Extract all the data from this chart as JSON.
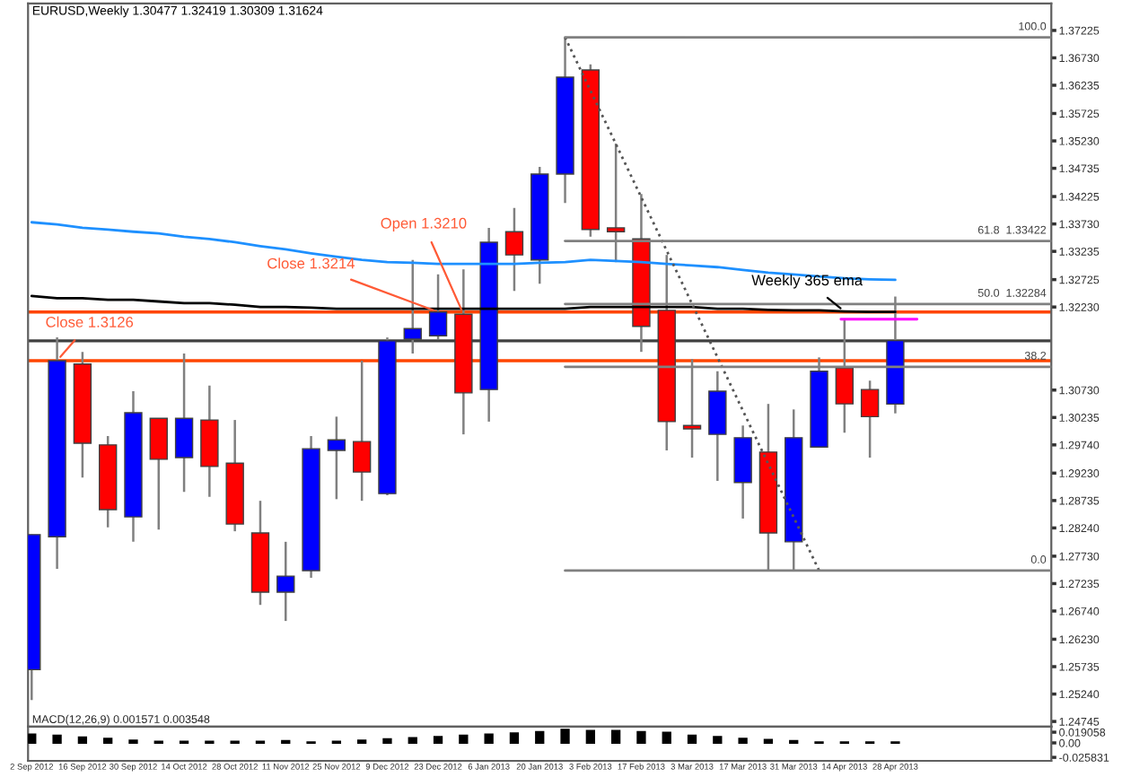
{
  "chart_data": [
    {
      "type": "candlestick",
      "title": "EURUSD,Weekly 1.30477 1.32419 1.30309 1.31624",
      "x": [
        "2012-09-02",
        "2012-09-09",
        "2012-09-16",
        "2012-09-23",
        "2012-09-30",
        "2012-10-07",
        "2012-10-14",
        "2012-10-21",
        "2012-10-28",
        "2012-11-04",
        "2012-11-11",
        "2012-11-18",
        "2012-11-25",
        "2012-12-02",
        "2012-12-09",
        "2012-12-16",
        "2012-12-23",
        "2012-12-30",
        "2013-01-06",
        "2013-01-13",
        "2013-01-20",
        "2013-01-27",
        "2013-02-03",
        "2013-02-10",
        "2013-02-17",
        "2013-02-24",
        "2013-03-03",
        "2013-03-10",
        "2013-03-17",
        "2013-03-24",
        "2013-03-31",
        "2013-04-07",
        "2013-04-14",
        "2013-04-21",
        "2013-04-28"
      ],
      "ohlc": [
        [
          1.2568,
          1.2812,
          1.2513,
          1.2812
        ],
        [
          1.2808,
          1.3168,
          1.275,
          1.3126
        ],
        [
          1.312,
          1.3142,
          1.2915,
          1.2977
        ],
        [
          1.2974,
          1.299,
          1.2825,
          1.2857
        ],
        [
          1.2844,
          1.3071,
          1.2799,
          1.3032
        ],
        [
          1.3022,
          1.3022,
          1.2821,
          1.2948
        ],
        [
          1.2951,
          1.3139,
          1.2889,
          1.3022
        ],
        [
          1.3019,
          1.3081,
          1.288,
          1.2935
        ],
        [
          1.2941,
          1.3019,
          1.2818,
          1.2831
        ],
        [
          1.2815,
          1.2873,
          1.2685,
          1.2708
        ],
        [
          1.2708,
          1.2799,
          1.2656,
          1.2737
        ],
        [
          1.2747,
          1.299,
          1.2734,
          1.2967
        ],
        [
          1.2964,
          1.3025,
          1.2876,
          1.2983
        ],
        [
          1.298,
          1.3126,
          1.2873,
          1.2925
        ],
        [
          1.2886,
          1.3168,
          1.2883,
          1.3162
        ],
        [
          1.3165,
          1.3308,
          1.3139,
          1.3184
        ],
        [
          1.3171,
          1.3282,
          1.3165,
          1.3214
        ],
        [
          1.321,
          1.3291,
          1.2993,
          1.3068
        ],
        [
          1.3074,
          1.3366,
          1.3016,
          1.334
        ],
        [
          1.3359,
          1.3402,
          1.3252,
          1.3317
        ],
        [
          1.3308,
          1.3476,
          1.3265,
          1.3463
        ],
        [
          1.3463,
          1.371,
          1.3411,
          1.3638
        ],
        [
          1.3651,
          1.3661,
          1.335,
          1.3363
        ],
        [
          1.3366,
          1.3518,
          1.3304,
          1.3359
        ],
        [
          1.3346,
          1.3427,
          1.3142,
          1.3188
        ],
        [
          1.3217,
          1.3317,
          1.2964,
          1.3016
        ],
        [
          1.3009,
          1.3129,
          1.2951,
          1.3003
        ],
        [
          1.2993,
          1.3107,
          1.2909,
          1.3071
        ],
        [
          1.2906,
          1.3009,
          1.2841,
          1.2987
        ],
        [
          1.2961,
          1.3048,
          1.2747,
          1.2815
        ],
        [
          1.2799,
          1.3038,
          1.2747,
          1.2987
        ],
        [
          1.297,
          1.3132,
          1.297,
          1.3107
        ],
        [
          1.3113,
          1.3201,
          1.2996,
          1.3048
        ],
        [
          1.3074,
          1.309,
          1.2951,
          1.3025
        ],
        [
          1.30477,
          1.32419,
          1.30309,
          1.31624
        ]
      ],
      "colors": [
        "#0000ff",
        "#0000ff",
        "#ff0000",
        "#ff0000",
        "#0000ff",
        "#ff0000",
        "#0000ff",
        "#ff0000",
        "#ff0000",
        "#ff0000",
        "#0000ff",
        "#0000ff",
        "#0000ff",
        "#ff0000",
        "#0000ff",
        "#0000ff",
        "#0000ff",
        "#ff0000",
        "#0000ff",
        "#ff0000",
        "#0000ff",
        "#0000ff",
        "#ff0000",
        "#ff0000",
        "#ff0000",
        "#ff0000",
        "#ff0000",
        "#0000ff",
        "#0000ff",
        "#ff0000",
        "#0000ff",
        "#0000ff",
        "#ff0000",
        "#ff0000",
        "#0000ff"
      ],
      "series": [
        {
          "type": "line",
          "color": "#1e90ff",
          "values": [
            1.3376,
            1.3372,
            1.3366,
            1.3363,
            1.3359,
            1.3356,
            1.335,
            1.3346,
            1.334,
            1.3333,
            1.3327,
            1.332,
            1.3314,
            1.3308,
            1.3304,
            1.3303,
            1.3301,
            1.3301,
            1.3301,
            1.3301,
            1.3303,
            1.3304,
            1.3308,
            1.3306,
            1.3304,
            1.3301,
            1.3298,
            1.3295,
            1.329,
            1.3285,
            1.3282,
            1.3278,
            1.3275,
            1.3273,
            1.3272
          ]
        },
        {
          "type": "line",
          "color": "#000000",
          "values": [
            1.3243,
            1.3239,
            1.3239,
            1.3236,
            1.3236,
            1.3233,
            1.323,
            1.323,
            1.3227,
            1.3223,
            1.3223,
            1.3222,
            1.322,
            1.322,
            1.322,
            1.322,
            1.322,
            1.322,
            1.322,
            1.322,
            1.322,
            1.322,
            1.3223,
            1.3223,
            1.3223,
            1.3223,
            1.3223,
            1.322,
            1.322,
            1.3218,
            1.3217,
            1.3217,
            1.3215,
            1.3214,
            1.3214
          ]
        },
        {
          "type": "line",
          "color": "#555555",
          "line_style": "dotted",
          "x": [
            "2013-01-27",
            "2013-04-07"
          ],
          "values": [
            1.371,
            1.2747
          ]
        },
        {
          "type": "line",
          "color": "#ff00ff",
          "x": [
            "2013-04-13",
            "2013-05-04"
          ],
          "values": [
            1.3201,
            1.3201
          ]
        },
        {
          "type": "line",
          "name": "100.0",
          "color": "#808080",
          "x": [
            "2013-01-27",
            "2013-06-10"
          ],
          "values": [
            1.371,
            1.371
          ]
        },
        {
          "type": "line",
          "name": "61.8  1.33422",
          "color": "#808080",
          "x": [
            "2013-01-27",
            "2013-06-10"
          ],
          "values": [
            1.33422,
            1.33422
          ]
        },
        {
          "type": "line",
          "name": "50.0  1.32284",
          "color": "#808080",
          "x": [
            "2013-01-27",
            "2013-06-10"
          ],
          "values": [
            1.32284,
            1.32284
          ]
        },
        {
          "type": "line",
          "name": "38.2",
          "color": "#808080",
          "x": [
            "2013-01-27",
            "2013-06-10"
          ],
          "values": [
            1.3115,
            1.3115
          ]
        },
        {
          "type": "line",
          "name": "0.0",
          "color": "#808080",
          "x": [
            "2013-01-27",
            "2013-06-10"
          ],
          "values": [
            1.2747,
            1.2747
          ]
        }
      ],
      "ref_lines": [
        {
          "axis": "y",
          "value": 1.3214,
          "color": "#ff4500"
        },
        {
          "axis": "y",
          "value": 1.3126,
          "color": "#ff4500"
        },
        {
          "axis": "y",
          "value": 1.3162,
          "color": "#404040"
        }
      ],
      "annotations": [
        {
          "text": "Close 1.3126",
          "x": "2012-09-09",
          "y": 1.3126
        },
        {
          "text": "Close 1.3214",
          "x": "2012-12-23",
          "y": 1.3214
        },
        {
          "text": "Open 1.3210",
          "x": "2012-12-30",
          "y": 1.321
        },
        {
          "text": "Weekly 365 ema",
          "x": "2013-04-14",
          "y": 1.3215
        }
      ],
      "xlim": [
        "2012-09-01",
        "2013-06-10"
      ],
      "ylim": [
        1.2465,
        1.3771
      ],
      "yticks": [
        1.37225,
        {
          "value": 1.3673,
          "label": "1.36730"
        },
        1.36235,
        1.35725,
        {
          "value": 1.3523,
          "label": "1.35230"
        },
        1.34735,
        1.34225,
        {
          "value": 1.3373,
          "label": "1.33730"
        },
        1.33235,
        1.32725,
        {
          "value": 1.3223,
          "label": "1.32230"
        },
        {
          "value": 1.3073,
          "label": "1.30730"
        },
        1.30235,
        {
          "value": 1.2974,
          "label": "1.29740"
        },
        {
          "value": 1.2923,
          "label": "1.29230"
        },
        1.28735,
        {
          "value": 1.2824,
          "label": "1.28240"
        },
        {
          "value": 1.2773,
          "label": "1.27730"
        },
        1.27235,
        {
          "value": 1.2674,
          "label": "1.26740"
        },
        {
          "value": 1.2623,
          "label": "1.26230"
        },
        1.25735,
        {
          "value": 1.2524,
          "label": "1.25240"
        },
        1.24745
      ],
      "tick_labels": "y",
      "grid": false,
      "legend": false
    },
    {
      "type": "bar",
      "color": "#000000",
      "x": [
        "2012-09-02",
        "2012-09-09",
        "2012-09-16",
        "2012-09-23",
        "2012-09-30",
        "2012-10-07",
        "2012-10-14",
        "2012-10-21",
        "2012-10-28",
        "2012-11-04",
        "2012-11-11",
        "2012-11-18",
        "2012-11-25",
        "2012-12-02",
        "2012-12-09",
        "2012-12-16",
        "2012-12-23",
        "2012-12-30",
        "2013-01-06",
        "2013-01-13",
        "2013-01-20",
        "2013-01-27",
        "2013-02-03",
        "2013-02-10",
        "2013-02-17",
        "2013-02-24",
        "2013-03-03",
        "2013-03-10",
        "2013-03-17",
        "2013-03-24",
        "2013-03-31",
        "2013-04-07",
        "2013-04-14",
        "2013-04-21",
        "2013-04-28"
      ],
      "values": [
        0.015,
        0.013,
        0.0096,
        0.0075,
        0.0042,
        0.0021,
        0.0021,
        0.0021,
        0.0021,
        0.0021,
        0.0032,
        0.0011,
        0.0021,
        0.0042,
        0.0064,
        0.0085,
        0.0107,
        0.0128,
        0.015,
        0.0171,
        0.0192,
        0.0235,
        0.0213,
        0.0213,
        0.0192,
        0.0181,
        0.0128,
        0.0107,
        0.0075,
        0.0053,
        0.0032,
        0.0011,
        0.0011,
        0.0011,
        0.0011
      ],
      "annotations": [
        "MACD(12,26,9) 0.001571 0.003548"
      ],
      "xlim": [
        "2012-09-01",
        "2013-06-10"
      ],
      "ylim": [
        -0.032,
        0.0288
      ],
      "xticks": [
        {
          "value": "2012-09-02",
          "label": "2 Sep 2012"
        },
        {
          "value": "2012-09-16",
          "label": "16 Sep 2012"
        },
        {
          "value": "2012-09-30",
          "label": "30 Sep 2012"
        },
        {
          "value": "2012-10-14",
          "label": "14 Oct 2012"
        },
        {
          "value": "2012-10-28",
          "label": "28 Oct 2012"
        },
        {
          "value": "2012-11-11",
          "label": "11 Nov 2012"
        },
        {
          "value": "2012-11-25",
          "label": "25 Nov 2012"
        },
        {
          "value": "2012-12-09",
          "label": "9 Dec 2012"
        },
        {
          "value": "2012-12-23",
          "label": "23 Dec 2012"
        },
        {
          "value": "2013-01-06",
          "label": "6 Jan 2013"
        },
        {
          "value": "2013-01-20",
          "label": "20 Jan 2013"
        },
        {
          "value": "2013-02-03",
          "label": "3 Feb 2013"
        },
        {
          "value": "2013-02-17",
          "label": "17 Feb 2013"
        },
        {
          "value": "2013-03-03",
          "label": "3 Mar 2013"
        },
        {
          "value": "2013-03-17",
          "label": "17 Mar 2013"
        },
        {
          "value": "2013-03-31",
          "label": "31 Mar 2013"
        },
        {
          "value": "2013-04-14",
          "label": "14 Apr 2013"
        },
        {
          "value": "2013-04-28",
          "label": "28 Apr 2013"
        }
      ],
      "yticks": [
        0.019058,
        {
          "value": 0,
          "label": "0.00"
        },
        -0.025831
      ],
      "grid": false,
      "legend": false
    }
  ]
}
